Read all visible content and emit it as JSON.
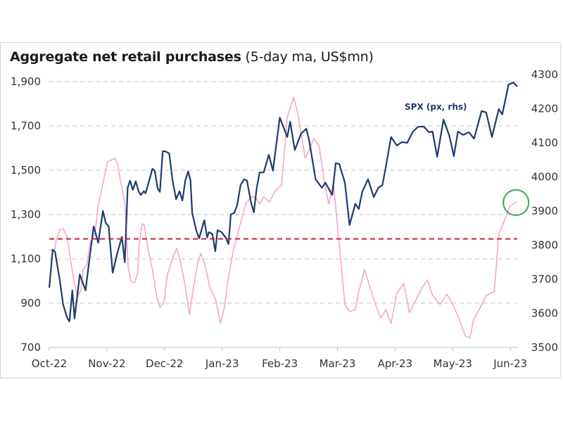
{
  "chart_data": {
    "type": "line",
    "title": "Aggregate net retail purchases",
    "subtitle": "(5-day ma, US$mn)",
    "xlabel": "",
    "x_unit": "months since Oct-22",
    "x_ticks": [
      "Oct-22",
      "Nov-22",
      "Dec-22",
      "Jan-23",
      "Feb-23",
      "Mar-23",
      "Apr-23",
      "May-23",
      "Jun-23"
    ],
    "xlim": [
      0,
      8.2
    ],
    "y_left": {
      "label": "US$mn",
      "ticks": [
        "1,900",
        "1,700",
        "1,500",
        "1,300",
        "1,100",
        "900",
        "700"
      ],
      "tick_values": [
        1900,
        1700,
        1500,
        1300,
        1100,
        900,
        700
      ],
      "ylim": [
        700,
        1900
      ]
    },
    "y_right": {
      "label": "SPX (px)",
      "ticks": [
        "4300",
        "4200",
        "4100",
        "4000",
        "3900",
        "3800",
        "3700",
        "3600",
        "3500"
      ],
      "tick_values": [
        4300,
        4200,
        4100,
        4000,
        3900,
        3800,
        3700,
        3600,
        3500
      ],
      "ylim": [
        3500,
        4300
      ]
    },
    "grid": "horizontal-dashed",
    "reference_line": {
      "axis": "left",
      "value": 1190,
      "style": "red-dashed"
    },
    "annotation": {
      "type": "circle",
      "target_series": "Aggregate net retail purchases",
      "at_x": 8.11,
      "at_y": 1357,
      "color": "#3aa655"
    },
    "series": [
      {
        "name": "Aggregate net retail purchases",
        "axis": "left",
        "color": "#f4a6c8",
        "x": [
          0.0,
          0.09,
          0.12,
          0.18,
          0.24,
          0.31,
          0.37,
          0.43,
          0.49,
          0.55,
          0.59,
          0.65,
          0.71,
          0.79,
          0.85,
          0.94,
          1.01,
          1.07,
          1.14,
          1.18,
          1.25,
          1.31,
          1.37,
          1.42,
          1.48,
          1.53,
          1.56,
          1.61,
          1.65,
          1.71,
          1.79,
          1.86,
          1.92,
          1.99,
          2.05,
          2.14,
          2.21,
          2.28,
          2.36,
          2.43,
          2.5,
          2.58,
          2.63,
          2.71,
          2.78,
          2.89,
          2.97,
          3.04,
          3.11,
          3.2,
          3.27,
          3.33,
          3.41,
          3.5,
          3.58,
          3.65,
          3.72,
          3.82,
          3.91,
          4.03,
          4.13,
          4.24,
          4.31,
          4.44,
          4.51,
          4.59,
          4.68,
          4.79,
          4.85,
          4.93,
          5.03,
          5.13,
          5.21,
          5.31,
          5.37,
          5.47,
          5.57,
          5.65,
          5.75,
          5.84,
          5.93,
          6.03,
          6.15,
          6.25,
          6.34,
          6.46,
          6.56,
          6.65,
          6.78,
          6.9,
          7.0,
          7.12,
          7.22,
          7.3,
          7.36,
          7.48,
          7.58,
          7.72,
          7.8,
          7.9,
          7.99,
          8.11
        ],
        "values": [
          1141,
          1135,
          1183,
          1230,
          1237,
          1198,
          1094,
          998,
          929,
          957,
          1052,
          1071,
          1173,
          1211,
          1338,
          1452,
          1538,
          1545,
          1554,
          1532,
          1433,
          1357,
          1062,
          998,
          992,
          1030,
          1167,
          1259,
          1252,
          1148,
          1052,
          935,
          881,
          903,
          1030,
          1103,
          1148,
          1084,
          976,
          849,
          967,
          1084,
          1125,
          1068,
          976,
          913,
          808,
          881,
          1021,
          1148,
          1211,
          1275,
          1348,
          1379,
          1379,
          1348,
          1379,
          1357,
          1402,
          1433,
          1738,
          1830,
          1760,
          1554,
          1592,
          1643,
          1611,
          1421,
          1348,
          1443,
          1167,
          894,
          862,
          871,
          951,
          1052,
          967,
          903,
          833,
          871,
          808,
          944,
          989,
          856,
          903,
          967,
          1005,
          935,
          894,
          941,
          894,
          824,
          751,
          744,
          824,
          881,
          935,
          951,
          1211,
          1275,
          1338,
          1357
        ]
      },
      {
        "name": "SPX (px, rhs)",
        "axis": "right",
        "color": "#1f3a6e",
        "x": [
          0.0,
          0.06,
          0.1,
          0.18,
          0.24,
          0.31,
          0.35,
          0.4,
          0.44,
          0.53,
          0.63,
          0.7,
          0.77,
          0.85,
          0.93,
          0.98,
          1.03,
          1.1,
          1.18,
          1.26,
          1.31,
          1.36,
          1.4,
          1.45,
          1.5,
          1.55,
          1.59,
          1.64,
          1.67,
          1.73,
          1.79,
          1.83,
          1.88,
          1.92,
          1.97,
          2.01,
          2.08,
          2.14,
          2.2,
          2.26,
          2.31,
          2.36,
          2.41,
          2.45,
          2.48,
          2.55,
          2.6,
          2.69,
          2.74,
          2.77,
          2.83,
          2.88,
          2.92,
          2.99,
          3.06,
          3.11,
          3.15,
          3.21,
          3.26,
          3.32,
          3.38,
          3.43,
          3.5,
          3.55,
          3.6,
          3.65,
          3.72,
          3.81,
          3.88,
          4.0,
          4.13,
          4.18,
          4.26,
          4.37,
          4.46,
          4.51,
          4.62,
          4.73,
          4.79,
          4.91,
          4.97,
          5.03,
          5.13,
          5.21,
          5.31,
          5.37,
          5.43,
          5.53,
          5.63,
          5.71,
          5.78,
          5.84,
          5.93,
          6.03,
          6.12,
          6.21,
          6.31,
          6.4,
          6.5,
          6.59,
          6.65,
          6.73,
          6.84,
          6.94,
          7.02,
          7.09,
          7.18,
          7.28,
          7.37,
          7.5,
          7.58,
          7.68,
          7.8,
          7.86,
          7.97,
          8.05,
          8.12
        ],
        "values": [
          3675,
          3787,
          3780,
          3700,
          3626,
          3587,
          3576,
          3667,
          3585,
          3714,
          3667,
          3762,
          3855,
          3807,
          3900,
          3865,
          3855,
          3719,
          3776,
          3824,
          3750,
          3968,
          3989,
          3962,
          3987,
          3958,
          3947,
          3958,
          3952,
          3987,
          4024,
          4018,
          3966,
          3956,
          4075,
          4075,
          4069,
          3989,
          3935,
          3958,
          3931,
          3989,
          4016,
          3989,
          3894,
          3844,
          3820,
          3873,
          3822,
          3838,
          3832,
          3782,
          3844,
          3838,
          3822,
          3803,
          3890,
          3894,
          3917,
          3976,
          3993,
          3989,
          3925,
          3896,
          3968,
          4013,
          4013,
          4065,
          4018,
          4174,
          4117,
          4162,
          4079,
          4127,
          4141,
          4106,
          3993,
          3968,
          3983,
          3947,
          4040,
          4038,
          3983,
          3859,
          3921,
          3906,
          3956,
          3993,
          3941,
          3968,
          3976,
          4030,
          4117,
          4092,
          4102,
          4100,
          4133,
          4147,
          4147,
          4131,
          4133,
          4059,
          4168,
          4121,
          4061,
          4133,
          4123,
          4131,
          4112,
          4193,
          4189,
          4117,
          4199,
          4183,
          4271,
          4277,
          4265
        ]
      }
    ]
  }
}
